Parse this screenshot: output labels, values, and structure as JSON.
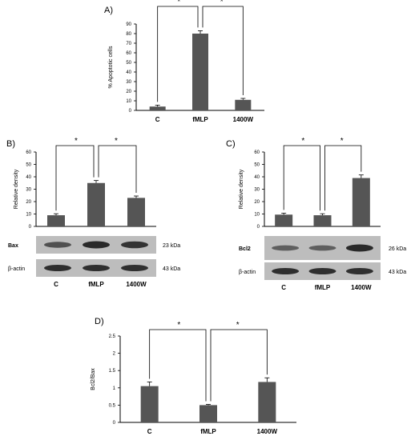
{
  "colors": {
    "bar": "#555555",
    "axis": "#000000",
    "blot_bg": "#bdbdbd",
    "band": "#2a2a2a"
  },
  "chart_data": [
    {
      "id": "A",
      "panel_label": "A)",
      "type": "bar",
      "categories": [
        "C",
        "fMLP",
        "1400W"
      ],
      "values": [
        4,
        80,
        11
      ],
      "errors": [
        1.5,
        3,
        1.5
      ],
      "ylabel": "% Apoptotic cells",
      "ylim": [
        0,
        90
      ],
      "yticks": [
        "0",
        "10",
        "20",
        "30",
        "40",
        "50",
        "60",
        "70",
        "80",
        "90"
      ],
      "significance": [
        {
          "from": 0,
          "to": 1,
          "label": "*"
        },
        {
          "from": 1,
          "to": 2,
          "label": "*"
        }
      ]
    },
    {
      "id": "B",
      "panel_label": "B)",
      "type": "bar",
      "categories": [
        "C",
        "fMLP",
        "1400W"
      ],
      "values": [
        9,
        35,
        23
      ],
      "errors": [
        1.2,
        2,
        1.5
      ],
      "ylabel": "Relative density",
      "ylim": [
        0,
        60
      ],
      "yticks": [
        "0",
        "10",
        "20",
        "30",
        "40",
        "50",
        "60"
      ],
      "significance": [
        {
          "from": 0,
          "to": 1,
          "label": "*"
        },
        {
          "from": 1,
          "to": 2,
          "label": "*"
        }
      ],
      "blot_rows": [
        {
          "label": "Bax",
          "size": "23 kDa"
        },
        {
          "label": "β-actin",
          "size": "43 kDa"
        }
      ]
    },
    {
      "id": "C",
      "panel_label": "C)",
      "type": "bar",
      "categories": [
        "C",
        "fMLP",
        "1400W"
      ],
      "values": [
        9.5,
        9,
        39
      ],
      "errors": [
        1.2,
        1.2,
        2.5
      ],
      "ylabel": "Relative density",
      "ylim": [
        0,
        60
      ],
      "yticks": [
        "0",
        "10",
        "20",
        "30",
        "40",
        "50",
        "60"
      ],
      "significance": [
        {
          "from": 0,
          "to": 1,
          "label": "*"
        },
        {
          "from": 1,
          "to": 2,
          "label": "*"
        }
      ],
      "blot_rows": [
        {
          "label": "Bcl2",
          "size": "26 kDa"
        },
        {
          "label": "β-actin",
          "size": "43 kDa"
        }
      ]
    },
    {
      "id": "D",
      "panel_label": "D)",
      "type": "bar",
      "categories": [
        "C",
        "fMLP",
        "1400W"
      ],
      "values": [
        1.05,
        0.5,
        1.17
      ],
      "errors": [
        0.12,
        0.02,
        0.12
      ],
      "ylabel": "Bcl2/Bax",
      "ylim": [
        0,
        2.5
      ],
      "yticks": [
        "0",
        "0.5",
        "1",
        "1.5",
        "2",
        "2.5"
      ],
      "significance": [
        {
          "from": 0,
          "to": 1,
          "label": "*"
        },
        {
          "from": 1,
          "to": 2,
          "label": "*"
        }
      ]
    }
  ]
}
